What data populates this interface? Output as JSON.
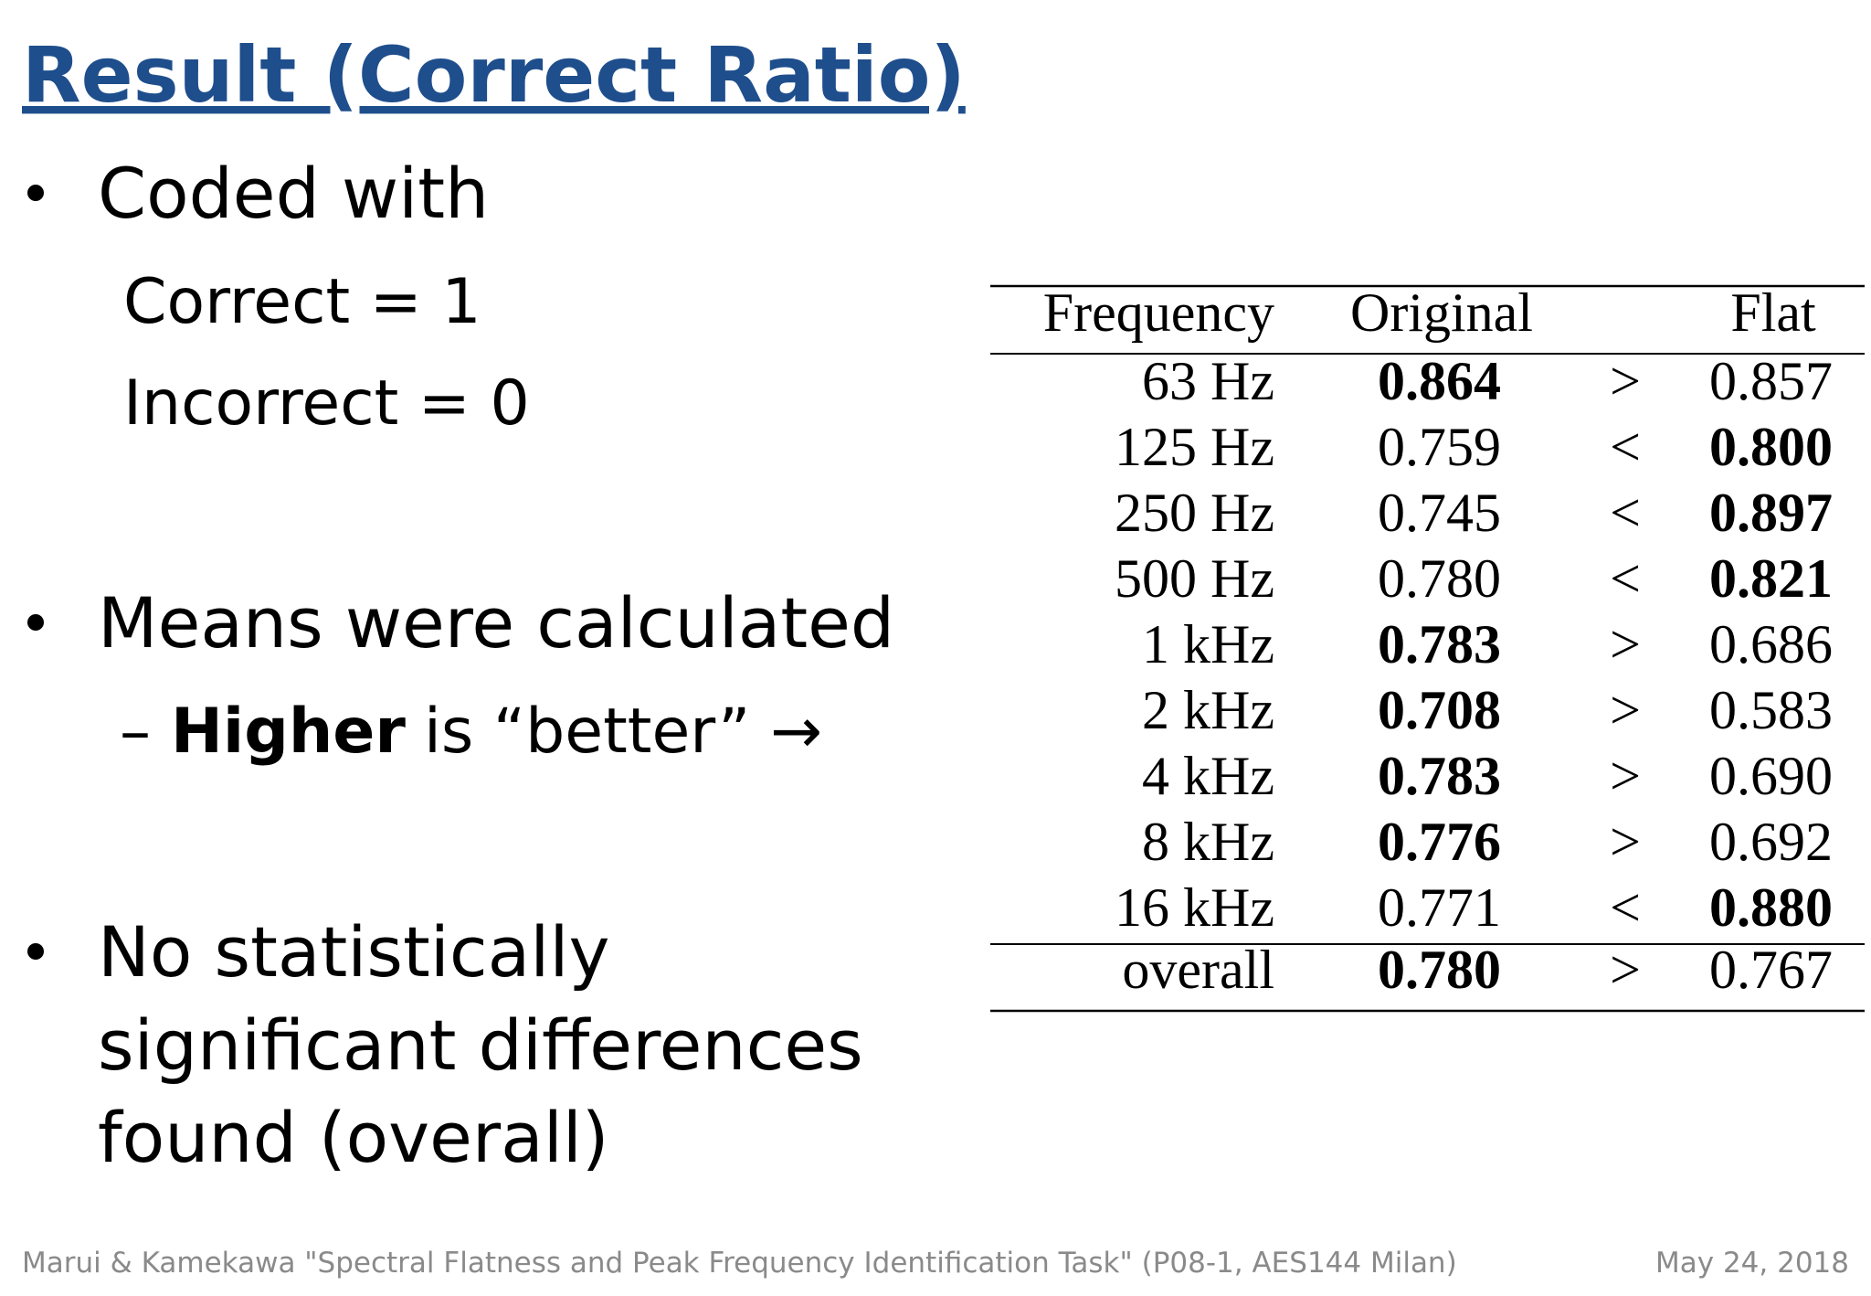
{
  "title": "Result (Correct Ratio)",
  "bullets": [
    {
      "text": "Coded with",
      "sub": [
        "Correct = 1",
        "Incorrect = 0"
      ]
    },
    {
      "text": "Means were calculated",
      "sub_dash": "–",
      "sub_bold": "Higher",
      "sub_rest": "is “better” →"
    },
    {
      "lines": [
        "No statistically",
        "significant differences",
        "found (overall)"
      ]
    }
  ],
  "table": {
    "headers": [
      "Frequency",
      "Original",
      "Flat"
    ],
    "rows": [
      {
        "frequency": "63 Hz",
        "original": "0.864",
        "comparison": ">",
        "flat": "0.857",
        "bold": "original"
      },
      {
        "frequency": "125 Hz",
        "original": "0.759",
        "comparison": "<",
        "flat": "0.800",
        "bold": "flat"
      },
      {
        "frequency": "250 Hz",
        "original": "0.745",
        "comparison": "<",
        "flat": "0.897",
        "bold": "flat"
      },
      {
        "frequency": "500 Hz",
        "original": "0.780",
        "comparison": "<",
        "flat": "0.821",
        "bold": "flat"
      },
      {
        "frequency": "1 kHz",
        "original": "0.783",
        "comparison": ">",
        "flat": "0.686",
        "bold": "original"
      },
      {
        "frequency": "2 kHz",
        "original": "0.708",
        "comparison": ">",
        "flat": "0.583",
        "bold": "original"
      },
      {
        "frequency": "4 kHz",
        "original": "0.783",
        "comparison": ">",
        "flat": "0.690",
        "bold": "original"
      },
      {
        "frequency": "8 kHz",
        "original": "0.776",
        "comparison": ">",
        "flat": "0.692",
        "bold": "original"
      },
      {
        "frequency": "16 kHz",
        "original": "0.771",
        "comparison": "<",
        "flat": "0.880",
        "bold": "flat"
      }
    ],
    "overall": {
      "frequency": "overall",
      "original": "0.780",
      "comparison": ">",
      "flat": "0.767",
      "bold": "original"
    }
  },
  "footer": {
    "left": "Marui & Kamekawa \"Spectral Flatness and Peak Frequency Identification Task\" (P08-1, AES144 Milan)",
    "right": "May 24, 2018"
  }
}
